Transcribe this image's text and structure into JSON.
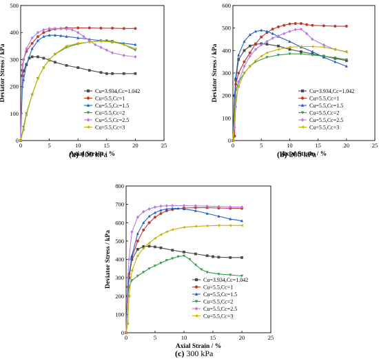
{
  "series_style": [
    {
      "color": "#4a4a4a",
      "marker": "square"
    },
    {
      "color": "#c0392b",
      "marker": "circle"
    },
    {
      "color": "#2060c8",
      "marker": "triangle-up"
    },
    {
      "color": "#3a9a4a",
      "marker": "triangle-down"
    },
    {
      "color": "#b57ae0",
      "marker": "diamond"
    },
    {
      "color": "#c9b000",
      "marker": "triangle-left"
    }
  ],
  "chart_data": [
    {
      "type": "line",
      "caption_label": "(a)",
      "caption_text": " 100 kPa",
      "xlabel": "Axial Strain / %",
      "ylabel": "Deviator Stress / kPa",
      "xlim": [
        0,
        25
      ],
      "ylim": [
        0,
        500
      ],
      "xticks": [
        0,
        5,
        10,
        15,
        20,
        25
      ],
      "yticks": [
        0,
        100,
        200,
        300,
        400,
        500
      ],
      "legend_position": "center-right",
      "series": [
        {
          "name": "Cu=3.934,Cc=1.042",
          "x": [
            0,
            0.3,
            0.5,
            1,
            1.5,
            2,
            3,
            4,
            5,
            6,
            8,
            10,
            12,
            14,
            15,
            16,
            18,
            20
          ],
          "y": [
            0,
            240,
            258,
            282,
            305,
            310,
            310,
            305,
            298,
            290,
            278,
            270,
            260,
            252,
            248,
            248,
            248,
            248
          ]
        },
        {
          "name": "Cu=5.5,Cc=1",
          "x": [
            0,
            0.3,
            0.5,
            1,
            2,
            3,
            4,
            5,
            6,
            7,
            8,
            10,
            12,
            14,
            16,
            18,
            20
          ],
          "y": [
            0,
            260,
            300,
            330,
            360,
            385,
            400,
            408,
            413,
            415,
            417,
            417,
            417,
            416,
            416,
            415,
            415
          ]
        },
        {
          "name": "Cu=5.5,Cc=1.5",
          "x": [
            0,
            0.3,
            0.5,
            1,
            2,
            3,
            4,
            5,
            6,
            7,
            8,
            10,
            12,
            14,
            16,
            18,
            20
          ],
          "y": [
            0,
            200,
            225,
            280,
            340,
            370,
            385,
            390,
            390,
            388,
            385,
            380,
            375,
            370,
            365,
            360,
            355
          ]
        },
        {
          "name": "Cu=5.5,Cc=2",
          "x": [
            0,
            0.5,
            1,
            2,
            3,
            4,
            5,
            6,
            8,
            10,
            12,
            14,
            15,
            16,
            18,
            20
          ],
          "y": [
            0,
            50,
            100,
            170,
            230,
            270,
            300,
            320,
            345,
            358,
            365,
            370,
            370,
            368,
            355,
            335
          ]
        },
        {
          "name": "Cu=5.5,Cc=2.5",
          "x": [
            0,
            0.3,
            0.5,
            1,
            2,
            3,
            4,
            5,
            6,
            7,
            8,
            9,
            10,
            11,
            12,
            13,
            14,
            15,
            16,
            18,
            20
          ],
          "y": [
            0,
            280,
            300,
            340,
            380,
            400,
            410,
            415,
            415,
            415,
            413,
            410,
            400,
            385,
            370,
            355,
            345,
            335,
            325,
            315,
            310
          ]
        },
        {
          "name": "Cu=5.5,Cc=3",
          "x": [
            0,
            0.5,
            1,
            2,
            3,
            4,
            5,
            6,
            8,
            10,
            12,
            14,
            16,
            18,
            20
          ],
          "y": [
            0,
            40,
            95,
            170,
            230,
            270,
            300,
            320,
            350,
            360,
            365,
            368,
            365,
            355,
            340
          ]
        }
      ]
    },
    {
      "type": "line",
      "caption_label": "(b)",
      "caption_text": " 200 kPa",
      "xlabel": "Axial Strain / %",
      "ylabel": "Deviator Stress / kPa",
      "xlim": [
        0,
        25
      ],
      "ylim": [
        0,
        600
      ],
      "xticks": [
        0,
        5,
        10,
        15,
        20,
        25
      ],
      "yticks": [
        0,
        100,
        200,
        300,
        400,
        500,
        600
      ],
      "legend_position": "center-right",
      "series": [
        {
          "name": "Cu=3.934,Cc=1.042",
          "x": [
            0,
            0.3,
            0.5,
            1,
            2,
            3,
            4,
            5,
            6,
            8,
            10,
            12,
            14,
            16,
            18,
            20
          ],
          "y": [
            0,
            200,
            270,
            360,
            400,
            420,
            428,
            430,
            428,
            420,
            405,
            395,
            385,
            375,
            365,
            355
          ]
        },
        {
          "name": "Cu=5.5,Cc=1",
          "x": [
            0,
            0.3,
            0.5,
            1,
            2,
            3,
            4,
            5,
            6,
            7,
            8,
            9,
            10,
            11,
            12,
            13,
            14,
            16,
            18,
            20
          ],
          "y": [
            0,
            20,
            250,
            300,
            350,
            390,
            430,
            460,
            480,
            495,
            505,
            512,
            518,
            520,
            520,
            515,
            512,
            510,
            508,
            508
          ]
        },
        {
          "name": "Cu=5.5,Cc=1.5",
          "x": [
            0,
            0.3,
            0.5,
            1,
            2,
            3,
            4,
            5,
            6,
            7,
            8,
            10,
            12,
            14,
            16,
            18,
            20
          ],
          "y": [
            0,
            200,
            280,
            380,
            440,
            470,
            485,
            490,
            485,
            475,
            462,
            440,
            415,
            395,
            370,
            350,
            330
          ]
        },
        {
          "name": "Cu=5.5,Cc=2",
          "x": [
            0,
            0.3,
            0.5,
            1,
            2,
            3,
            4,
            6,
            8,
            10,
            12,
            14,
            16,
            18,
            20
          ],
          "y": [
            0,
            150,
            220,
            260,
            300,
            330,
            350,
            370,
            380,
            385,
            385,
            380,
            375,
            368,
            360
          ]
        },
        {
          "name": "Cu=5.5,Cc=2.5",
          "x": [
            0,
            0.3,
            0.5,
            1,
            2,
            3,
            4,
            5,
            6,
            7,
            8,
            9,
            10,
            11,
            12,
            13,
            14,
            16,
            18,
            20
          ],
          "y": [
            0,
            60,
            150,
            260,
            330,
            375,
            405,
            425,
            440,
            455,
            465,
            475,
            485,
            493,
            495,
            475,
            450,
            425,
            405,
            395
          ]
        },
        {
          "name": "Cu=5.5,Cc=3",
          "x": [
            0,
            0.3,
            0.5,
            1,
            2,
            3,
            4,
            5,
            6,
            8,
            10,
            12,
            14,
            16,
            18,
            20
          ],
          "y": [
            0,
            100,
            180,
            240,
            300,
            330,
            355,
            375,
            390,
            405,
            415,
            418,
            418,
            415,
            405,
            393
          ]
        }
      ]
    },
    {
      "type": "line",
      "caption_label": "(c)",
      "caption_text": " 300 kPa",
      "xlabel": "Axial Strain / %",
      "ylabel": "Deviator Stress / kPa",
      "xlim": [
        0,
        25
      ],
      "ylim": [
        0,
        800
      ],
      "xticks": [
        0,
        5,
        10,
        15,
        20,
        25
      ],
      "yticks": [
        0,
        100,
        200,
        300,
        400,
        500,
        600,
        700,
        800
      ],
      "legend_position": "center-right",
      "series": [
        {
          "name": "Cu=3.934,Cc=1.042",
          "x": [
            0,
            0.3,
            0.5,
            1,
            2,
            3,
            4,
            5,
            6,
            8,
            10,
            12,
            14,
            15,
            16,
            18,
            20
          ],
          "y": [
            0,
            200,
            300,
            400,
            455,
            470,
            472,
            468,
            463,
            450,
            440,
            430,
            420,
            415,
            412,
            410,
            410
          ]
        },
        {
          "name": "Cu=5.5,Cc=1",
          "x": [
            0,
            0.3,
            0.5,
            1,
            2,
            3,
            4,
            5,
            6,
            7,
            8,
            10,
            12,
            14,
            16,
            18,
            20
          ],
          "y": [
            0,
            250,
            320,
            410,
            500,
            560,
            600,
            630,
            650,
            665,
            672,
            680,
            682,
            682,
            680,
            678,
            678
          ]
        },
        {
          "name": "Cu=5.5,Cc=1.5",
          "x": [
            0,
            0.3,
            0.5,
            1,
            2,
            3,
            4,
            5,
            6,
            7,
            8,
            9,
            10,
            12,
            14,
            16,
            18,
            20
          ],
          "y": [
            0,
            200,
            300,
            420,
            540,
            600,
            635,
            655,
            668,
            675,
            678,
            678,
            675,
            665,
            650,
            635,
            620,
            610
          ]
        },
        {
          "name": "Cu=5.5,Cc=2",
          "x": [
            0,
            0.3,
            0.5,
            1,
            2,
            3,
            4,
            5,
            6,
            7,
            8,
            9,
            10,
            11,
            12,
            13,
            14,
            16,
            18,
            20
          ],
          "y": [
            0,
            200,
            250,
            285,
            310,
            330,
            350,
            365,
            380,
            395,
            405,
            415,
            420,
            400,
            370,
            345,
            330,
            320,
            315,
            310
          ]
        },
        {
          "name": "Cu=5.5,Cc=2.5",
          "x": [
            0,
            0.3,
            0.5,
            1,
            2,
            3,
            4,
            5,
            6,
            7,
            8,
            10,
            12,
            14,
            16,
            18,
            20
          ],
          "y": [
            0,
            300,
            400,
            550,
            630,
            660,
            675,
            685,
            690,
            692,
            693,
            693,
            692,
            690,
            688,
            686,
            685
          ]
        },
        {
          "name": "Cu=5.5,Cc=3",
          "x": [
            0,
            0.3,
            0.5,
            1,
            2,
            3,
            4,
            5,
            6,
            7,
            8,
            10,
            12,
            14,
            16,
            18,
            20
          ],
          "y": [
            0,
            50,
            200,
            340,
            420,
            460,
            490,
            515,
            535,
            550,
            562,
            575,
            580,
            583,
            585,
            585,
            585
          ]
        }
      ]
    }
  ]
}
